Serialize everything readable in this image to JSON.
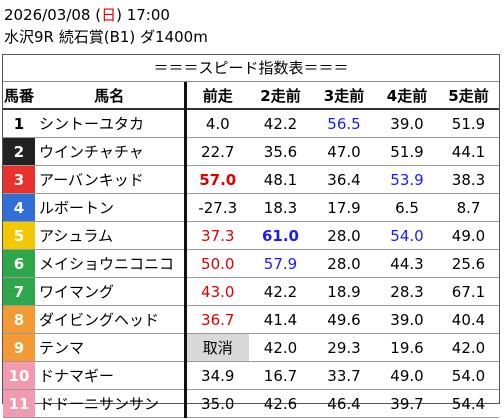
{
  "header": {
    "date_prefix": "2026/03/08 (",
    "weekday": "日",
    "weekday_color": "#e00000",
    "date_suffix": ") 17:00",
    "race": "水沢9R 続石賞(B1) ダ1400m"
  },
  "table": {
    "title": "＝＝＝スピード指数表＝＝＝",
    "columns": [
      "馬番",
      "馬名",
      "前走",
      "2走前",
      "3走前",
      "4走前",
      "5走前"
    ],
    "rows": [
      {
        "no": "1",
        "bg": "#ffffff",
        "fg": "#000000",
        "name": "シントーユタカ",
        "cells": [
          {
            "text": "4.0"
          },
          {
            "text": "42.2"
          },
          {
            "text": "56.5",
            "color": "#1a1aff"
          },
          {
            "text": "39.0"
          },
          {
            "text": "51.9"
          }
        ]
      },
      {
        "no": "2",
        "bg": "#222222",
        "fg": "#ffffff",
        "name": "ウインチャチャ",
        "cells": [
          {
            "text": "22.7"
          },
          {
            "text": "35.6"
          },
          {
            "text": "47.0"
          },
          {
            "text": "51.9"
          },
          {
            "text": "44.1"
          }
        ]
      },
      {
        "no": "3",
        "bg": "#e8322b",
        "fg": "#ffffff",
        "name": "アーバンキッド",
        "cells": [
          {
            "text": "57.0",
            "color": "#e00000",
            "bold": true
          },
          {
            "text": "48.1"
          },
          {
            "text": "36.4"
          },
          {
            "text": "53.9",
            "color": "#1a1aff"
          },
          {
            "text": "38.3"
          }
        ]
      },
      {
        "no": "4",
        "bg": "#2f6fd6",
        "fg": "#ffffff",
        "name": "ルボートン",
        "cells": [
          {
            "text": "-27.3"
          },
          {
            "text": "18.3"
          },
          {
            "text": "17.9"
          },
          {
            "text": "6.5"
          },
          {
            "text": "8.7"
          }
        ]
      },
      {
        "no": "5",
        "bg": "#f2c800",
        "fg": "#ffffff",
        "name": "アシュラム",
        "cells": [
          {
            "text": "37.3",
            "color": "#e00000"
          },
          {
            "text": "61.0",
            "color": "#1a1aff",
            "bold": true
          },
          {
            "text": "28.0"
          },
          {
            "text": "54.0",
            "color": "#1a1aff"
          },
          {
            "text": "49.0"
          }
        ]
      },
      {
        "no": "6",
        "bg": "#2ea64a",
        "fg": "#ffffff",
        "name": "メイショウニコニコ",
        "cells": [
          {
            "text": "50.0",
            "color": "#e00000"
          },
          {
            "text": "57.9",
            "color": "#1a1aff"
          },
          {
            "text": "28.0"
          },
          {
            "text": "44.3"
          },
          {
            "text": "25.6"
          }
        ]
      },
      {
        "no": "7",
        "bg": "#2ea64a",
        "fg": "#ffffff",
        "name": "ワイマング",
        "cells": [
          {
            "text": "43.0",
            "color": "#e00000"
          },
          {
            "text": "42.2"
          },
          {
            "text": "18.9"
          },
          {
            "text": "28.3"
          },
          {
            "text": "67.1"
          }
        ]
      },
      {
        "no": "8",
        "bg": "#f39a34",
        "fg": "#ffffff",
        "name": "ダイビングヘッド",
        "cells": [
          {
            "text": "36.7",
            "color": "#e00000"
          },
          {
            "text": "41.4"
          },
          {
            "text": "49.6"
          },
          {
            "text": "39.0"
          },
          {
            "text": "40.4"
          }
        ]
      },
      {
        "no": "9",
        "bg": "#f39a34",
        "fg": "#ffffff",
        "name": "テンマ",
        "cells": [
          {
            "text": "取消",
            "bg": "#d9d9d9"
          },
          {
            "text": "42.0"
          },
          {
            "text": "29.3"
          },
          {
            "text": "19.6"
          },
          {
            "text": "42.0"
          }
        ]
      },
      {
        "no": "10",
        "bg": "#f29bb0",
        "fg": "#ffffff",
        "name": "ドナマギー",
        "cells": [
          {
            "text": "34.9"
          },
          {
            "text": "16.7"
          },
          {
            "text": "33.7"
          },
          {
            "text": "49.0"
          },
          {
            "text": "54.0"
          }
        ]
      },
      {
        "no": "11",
        "bg": "#f29bb0",
        "fg": "#ffffff",
        "name": "ドドーニサンサン",
        "cells": [
          {
            "text": "35.0"
          },
          {
            "text": "42.6"
          },
          {
            "text": "46.4"
          },
          {
            "text": "39.7"
          },
          {
            "text": "54.4"
          }
        ]
      }
    ]
  }
}
